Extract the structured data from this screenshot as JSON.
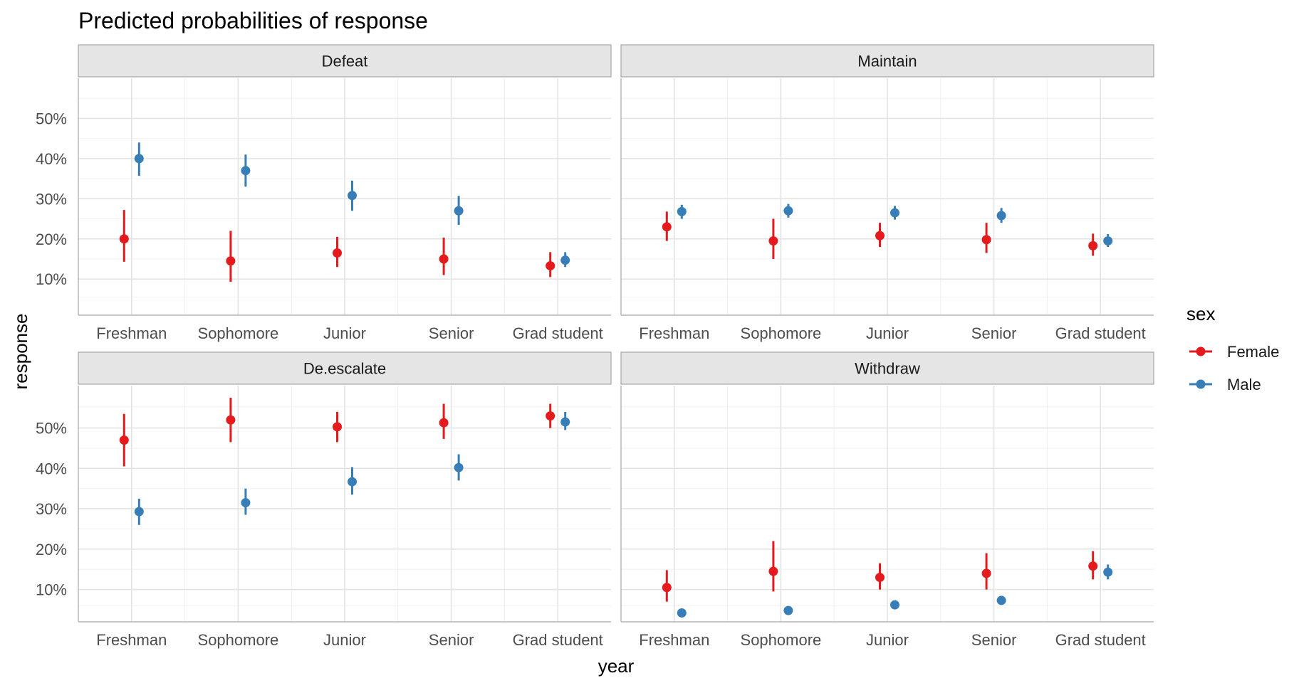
{
  "chart_data": {
    "type": "scatter",
    "title": "Predicted probabilities of response",
    "xlabel": "year",
    "ylabel": "response",
    "categories": [
      "Freshman",
      "Sophomore",
      "Junior",
      "Senior",
      "Grad student"
    ],
    "legend": {
      "title": "sex",
      "placement": "right",
      "entries": [
        {
          "name": "Female",
          "color": "#E41A1C"
        },
        {
          "name": "Male",
          "color": "#377EB8"
        }
      ]
    },
    "grid": true,
    "panels": [
      {
        "name": "Defeat",
        "ylim": [
          0.01,
          0.6
        ],
        "yticks": [
          0.1,
          0.2,
          0.3,
          0.4,
          0.5
        ],
        "ytick_labels": [
          "10%",
          "20%",
          "30%",
          "40%",
          "50%"
        ],
        "series": [
          {
            "name": "Female",
            "values": [
              0.2,
              0.145,
              0.165,
              0.15,
              0.133
            ],
            "lower": [
              0.143,
              0.093,
              0.13,
              0.11,
              0.105
            ],
            "upper": [
              0.272,
              0.22,
              0.205,
              0.203,
              0.167
            ]
          },
          {
            "name": "Male",
            "values": [
              0.4,
              0.37,
              0.308,
              0.27,
              0.147
            ],
            "lower": [
              0.357,
              0.33,
              0.27,
              0.235,
              0.13
            ],
            "upper": [
              0.44,
              0.41,
              0.345,
              0.307,
              0.167
            ]
          }
        ]
      },
      {
        "name": "Maintain",
        "ylim": [
          0.01,
          0.6
        ],
        "yticks": [
          0.1,
          0.2,
          0.3,
          0.4,
          0.5
        ],
        "ytick_labels": [
          "10%",
          "20%",
          "30%",
          "40%",
          "50%"
        ],
        "series": [
          {
            "name": "Female",
            "values": [
              0.23,
              0.195,
              0.208,
              0.198,
              0.183
            ],
            "lower": [
              0.195,
              0.15,
              0.18,
              0.165,
              0.158
            ],
            "upper": [
              0.268,
              0.25,
              0.24,
              0.24,
              0.213
            ]
          },
          {
            "name": "Male",
            "values": [
              0.268,
              0.27,
              0.265,
              0.258,
              0.195
            ],
            "lower": [
              0.25,
              0.253,
              0.248,
              0.24,
              0.18
            ],
            "upper": [
              0.285,
              0.287,
              0.282,
              0.277,
              0.212
            ]
          }
        ]
      },
      {
        "name": "De.escalate",
        "ylim": [
          0.02,
          0.605
        ],
        "yticks": [
          0.1,
          0.2,
          0.3,
          0.4,
          0.5
        ],
        "ytick_labels": [
          "10%",
          "20%",
          "30%",
          "40%",
          "50%"
        ],
        "series": [
          {
            "name": "Female",
            "values": [
              0.47,
              0.52,
              0.503,
              0.513,
              0.53
            ],
            "lower": [
              0.405,
              0.465,
              0.465,
              0.473,
              0.5
            ],
            "upper": [
              0.535,
              0.575,
              0.54,
              0.56,
              0.56
            ]
          },
          {
            "name": "Male",
            "values": [
              0.293,
              0.315,
              0.367,
              0.402,
              0.515
            ],
            "lower": [
              0.26,
              0.285,
              0.335,
              0.37,
              0.495
            ],
            "upper": [
              0.325,
              0.35,
              0.403,
              0.435,
              0.54
            ]
          }
        ]
      },
      {
        "name": "Withdraw",
        "ylim": [
          0.02,
          0.605
        ],
        "yticks": [
          0.1,
          0.2,
          0.3,
          0.4,
          0.5
        ],
        "ytick_labels": [
          "10%",
          "20%",
          "30%",
          "40%",
          "50%"
        ],
        "series": [
          {
            "name": "Female",
            "values": [
              0.105,
              0.145,
              0.13,
              0.14,
              0.158
            ],
            "lower": [
              0.07,
              0.095,
              0.1,
              0.1,
              0.125
            ],
            "upper": [
              0.148,
              0.22,
              0.165,
              0.19,
              0.195
            ]
          },
          {
            "name": "Male",
            "values": [
              0.042,
              0.048,
              0.062,
              0.073,
              0.143
            ],
            "lower": [
              0.036,
              0.042,
              0.055,
              0.065,
              0.125
            ],
            "upper": [
              0.05,
              0.055,
              0.07,
              0.082,
              0.162
            ]
          }
        ]
      }
    ]
  }
}
